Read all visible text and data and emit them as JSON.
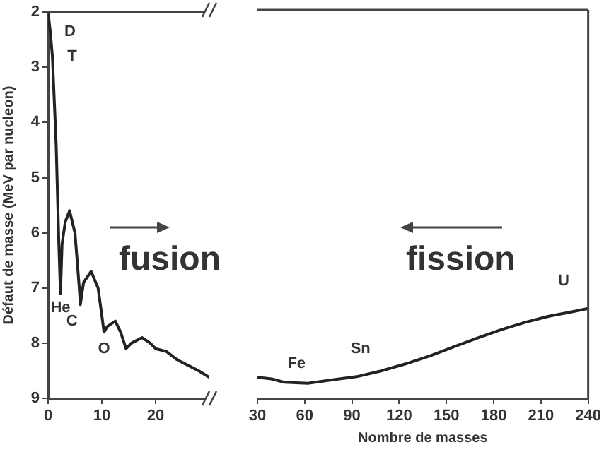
{
  "chart_data": [
    {
      "type": "line",
      "ylabel": "Défaut de masse (MeV par nucleon)",
      "xlim": [
        0,
        30
      ],
      "xticks": [
        0,
        10,
        20
      ],
      "ylim": [
        9,
        2
      ],
      "yticks": [
        2,
        3,
        4,
        5,
        6,
        7,
        8,
        9
      ],
      "grid": false,
      "legend": false,
      "marker": "none",
      "tick_labels": "xy",
      "series": [
        {
          "color": "#222222",
          "x": [
            0,
            0.4,
            0.8,
            1.5,
            2,
            2.3,
            2.6,
            3.2,
            4,
            5,
            5.8,
            6,
            6.6,
            8,
            9.3,
            10,
            10.4,
            11,
            12.5,
            13.5,
            14.5,
            15.5,
            17.5,
            19,
            20,
            22,
            24,
            26,
            28,
            30
          ],
          "values": [
            2,
            2.35,
            2.8,
            4.4,
            6.2,
            7.1,
            6.2,
            5.8,
            5.6,
            6.0,
            7.0,
            7.3,
            6.9,
            6.7,
            7.0,
            7.5,
            7.8,
            7.7,
            7.6,
            7.8,
            8.1,
            8.0,
            7.9,
            8.0,
            8.1,
            8.15,
            8.3,
            8.4,
            8.5,
            8.62
          ]
        }
      ],
      "annotations": [
        {
          "text": "D",
          "x": 0.4,
          "y": 2.35
        },
        {
          "text": "T",
          "x": 0.8,
          "y": 2.8
        },
        {
          "text": "He",
          "x": 2.3,
          "y": 7.1
        },
        {
          "text": "C",
          "x": 6,
          "y": 7.3
        },
        {
          "text": "O",
          "x": 10.4,
          "y": 7.8
        },
        "fusion"
      ]
    },
    {
      "type": "line",
      "xlabel": "Nombre de masses",
      "xlim": [
        30,
        240
      ],
      "xticks": [
        30,
        60,
        90,
        120,
        150,
        180,
        210,
        240
      ],
      "ylim": [
        9,
        2
      ],
      "grid": false,
      "legend": false,
      "marker": "none",
      "tick_labels": "x",
      "series": [
        {
          "color": "#222222",
          "x": [
            30,
            39,
            47,
            62,
            77,
            93,
            108,
            124,
            139,
            154,
            170,
            185,
            200,
            215,
            228,
            240
          ],
          "values": [
            8.62,
            8.65,
            8.71,
            8.73,
            8.67,
            8.61,
            8.51,
            8.38,
            8.24,
            8.08,
            7.91,
            7.76,
            7.63,
            7.52,
            7.45,
            7.38
          ]
        }
      ],
      "annotations": [
        {
          "text": "Fe",
          "x": 62,
          "y": 8.73
        },
        {
          "text": "Sn",
          "x": 108,
          "y": 8.51
        },
        {
          "text": "U",
          "x": 228,
          "y": 7.45
        },
        "fission"
      ]
    }
  ]
}
